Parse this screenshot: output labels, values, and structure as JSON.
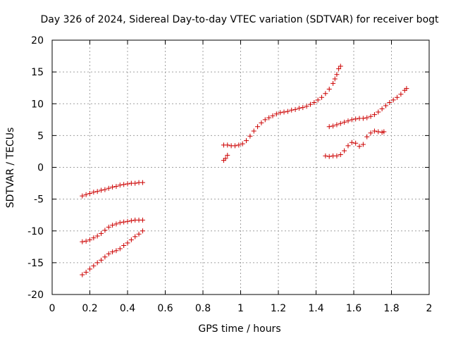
{
  "chart_data": {
    "type": "scatter",
    "title": "Day 326 of 2024, Sidereal Day-to-day VTEC variation (SDTVAR) for receiver bogt",
    "xlabel": "GPS time / hours",
    "ylabel": "SDTVAR / TECUs",
    "xlim": [
      0,
      2
    ],
    "ylim": [
      -20,
      20
    ],
    "x_ticks": [
      0,
      0.2,
      0.4,
      0.6,
      0.8,
      1,
      1.2,
      1.4,
      1.6,
      1.8,
      2
    ],
    "x_tick_labels": [
      "0",
      "0.2",
      "0.4",
      "0.6",
      "0.8",
      "1",
      "1.2",
      "1.4",
      "1.6",
      "1.8",
      "2"
    ],
    "y_ticks": [
      -20,
      -15,
      -10,
      -5,
      0,
      5,
      10,
      15,
      20
    ],
    "y_tick_labels": [
      "-20",
      "-15",
      "-10",
      "-5",
      "0",
      "5",
      "10",
      "15",
      "20"
    ],
    "grid": true,
    "marker": "+",
    "marker_color": "#cc0000",
    "series": [
      {
        "name": "seg-a",
        "x": [
          0.16,
          0.18,
          0.2,
          0.22,
          0.24,
          0.26,
          0.28,
          0.3,
          0.32,
          0.34,
          0.36,
          0.38,
          0.4,
          0.42,
          0.44,
          0.46,
          0.48
        ],
        "y": [
          -4.5,
          -4.3,
          -4.1,
          -3.9,
          -3.8,
          -3.6,
          -3.5,
          -3.3,
          -3.1,
          -3.0,
          -2.8,
          -2.7,
          -2.6,
          -2.5,
          -2.5,
          -2.4,
          -2.4
        ]
      },
      {
        "name": "seg-b",
        "x": [
          0.16,
          0.18,
          0.2,
          0.22,
          0.24,
          0.26,
          0.28,
          0.3,
          0.32,
          0.34,
          0.36,
          0.38,
          0.4,
          0.42,
          0.44,
          0.46,
          0.48
        ],
        "y": [
          -11.7,
          -11.6,
          -11.4,
          -11.1,
          -10.8,
          -10.4,
          -9.9,
          -9.4,
          -9.1,
          -8.9,
          -8.7,
          -8.6,
          -8.5,
          -8.4,
          -8.3,
          -8.3,
          -8.3
        ]
      },
      {
        "name": "seg-c",
        "x": [
          0.16,
          0.18,
          0.2,
          0.22,
          0.24,
          0.26,
          0.28,
          0.3,
          0.32,
          0.34,
          0.36,
          0.38,
          0.4,
          0.42,
          0.44,
          0.46,
          0.48
        ],
        "y": [
          -16.9,
          -16.5,
          -16.0,
          -15.5,
          -15.0,
          -14.6,
          -14.1,
          -13.6,
          -13.3,
          -13.1,
          -12.8,
          -12.3,
          -11.9,
          -11.4,
          -10.9,
          -10.5,
          -10.0
        ]
      },
      {
        "name": "seg-d",
        "x": [
          0.91,
          0.92,
          0.93
        ],
        "y": [
          1.1,
          1.4,
          1.9
        ]
      },
      {
        "name": "seg-e",
        "x": [
          0.91,
          0.93,
          0.95,
          0.97,
          0.99,
          1.01,
          1.03,
          1.05,
          1.07,
          1.09,
          1.11,
          1.13,
          1.15,
          1.17,
          1.19,
          1.21,
          1.23,
          1.25,
          1.27,
          1.29,
          1.31,
          1.33,
          1.35,
          1.37,
          1.39,
          1.41,
          1.43,
          1.45,
          1.47,
          1.49,
          1.5,
          1.51,
          1.52,
          1.53
        ],
        "y": [
          3.5,
          3.5,
          3.4,
          3.4,
          3.5,
          3.7,
          4.2,
          4.9,
          5.7,
          6.4,
          7.0,
          7.5,
          7.8,
          8.1,
          8.4,
          8.6,
          8.7,
          8.8,
          9.0,
          9.1,
          9.3,
          9.4,
          9.6,
          9.9,
          10.2,
          10.6,
          11.0,
          11.6,
          12.3,
          13.2,
          13.9,
          14.6,
          15.5,
          15.9
        ]
      },
      {
        "name": "seg-f",
        "x": [
          1.47,
          1.49,
          1.51,
          1.53,
          1.55,
          1.57,
          1.59,
          1.61,
          1.63,
          1.65,
          1.67,
          1.69,
          1.71,
          1.73,
          1.75,
          1.77,
          1.79,
          1.81,
          1.83,
          1.85,
          1.87,
          1.88
        ],
        "y": [
          6.4,
          6.5,
          6.7,
          6.9,
          7.1,
          7.3,
          7.5,
          7.6,
          7.7,
          7.7,
          7.8,
          8.0,
          8.3,
          8.7,
          9.2,
          9.7,
          10.2,
          10.6,
          11.0,
          11.5,
          12.1,
          12.4
        ]
      },
      {
        "name": "seg-g",
        "x": [
          1.45,
          1.47,
          1.49,
          1.51,
          1.53,
          1.55,
          1.57,
          1.59,
          1.61,
          1.63,
          1.65,
          1.67,
          1.69,
          1.71,
          1.73,
          1.75,
          1.76
        ],
        "y": [
          1.8,
          1.7,
          1.8,
          1.8,
          2.0,
          2.6,
          3.4,
          3.9,
          3.8,
          3.3,
          3.6,
          4.8,
          5.4,
          5.7,
          5.6,
          5.5,
          5.6
        ]
      }
    ]
  }
}
